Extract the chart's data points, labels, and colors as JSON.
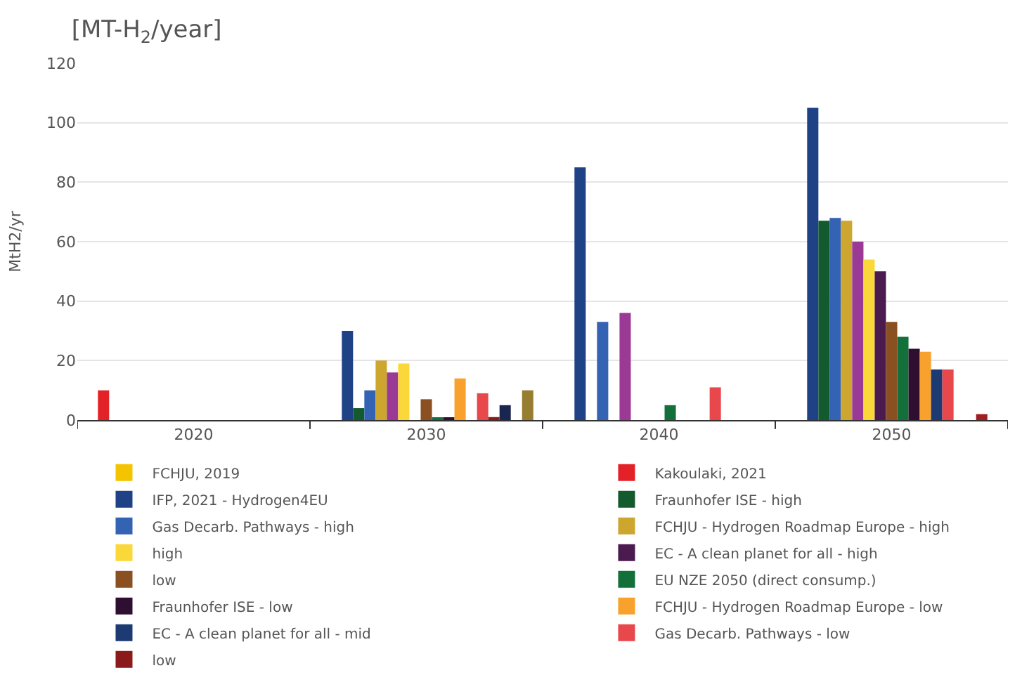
{
  "chart_data": {
    "type": "bar",
    "title": "[MT-H$_{2}$/year]",
    "ylabel": "MtH2/yr",
    "categories": [
      "2020",
      "2030",
      "2040",
      "2050"
    ],
    "ylim": [
      0,
      120
    ],
    "yticks": [
      0,
      20,
      40,
      60,
      80,
      100,
      120
    ],
    "grid": "y",
    "legend": "bottom",
    "series": [
      {
        "name": "FCHJU, 2019",
        "color": "#f5c400",
        "values": [
          null,
          null,
          null,
          null
        ]
      },
      {
        "name": "Kakoulaki, 2021",
        "color": "#e32228",
        "values": [
          10,
          null,
          null,
          null
        ]
      },
      {
        "name": "IFP, 2021 - Hydrogen4EU",
        "color": "#1f4287",
        "values": [
          null,
          30,
          85,
          105
        ]
      },
      {
        "name": "Fraunhofer ISE - high",
        "color": "#135a2e",
        "values": [
          null,
          4,
          null,
          67
        ]
      },
      {
        "name": "Gas Decarb. Pathways - high",
        "color": "#3463b3",
        "values": [
          null,
          10,
          33,
          68
        ]
      },
      {
        "name": "FCHJU - Hydrogen Roadmap Europe - high",
        "color": "#cda630",
        "values": [
          null,
          20,
          null,
          67
        ]
      },
      {
        "name": null,
        "color": "#9b3a94",
        "values": [
          null,
          16,
          36,
          60
        ]
      },
      {
        "name": "high",
        "color": "#fbd83a",
        "values": [
          null,
          19,
          null,
          54
        ]
      },
      {
        "name": "EC - A clean planet for all - high",
        "color": "#4b1a4f",
        "values": [
          null,
          null,
          null,
          50
        ]
      },
      {
        "name": "low",
        "color": "#8a5022",
        "values": [
          null,
          7,
          null,
          33
        ]
      },
      {
        "name": "EU NZE 2050 (direct consump.)",
        "color": "#13703a",
        "values": [
          null,
          0.5,
          5,
          28
        ]
      },
      {
        "name": "Fraunhofer ISE - low",
        "color": "#2e0f32",
        "values": [
          null,
          0.5,
          null,
          24
        ]
      },
      {
        "name": "FCHJU - Hydrogen Roadmap Europe - low",
        "color": "#f8a12c",
        "values": [
          null,
          14,
          null,
          23
        ]
      },
      {
        "name": "EC - A clean planet for all - mid",
        "color": "#1d3a73",
        "values": [
          null,
          null,
          null,
          17
        ]
      },
      {
        "name": "Gas Decarb. Pathways - low",
        "color": "#e8474c",
        "values": [
          null,
          9,
          11,
          17
        ]
      },
      {
        "name": "low",
        "color": "#8b1a1a",
        "values": [
          null,
          1,
          null,
          null
        ]
      },
      {
        "name": null,
        "color": "#1a2550",
        "values": [
          null,
          5,
          null,
          null
        ]
      },
      {
        "name": null,
        "color": "#a01d22",
        "values": [
          null,
          null,
          null,
          2
        ]
      },
      {
        "name": null,
        "color": "#977d30",
        "values": [
          null,
          10,
          null,
          null
        ]
      }
    ]
  }
}
